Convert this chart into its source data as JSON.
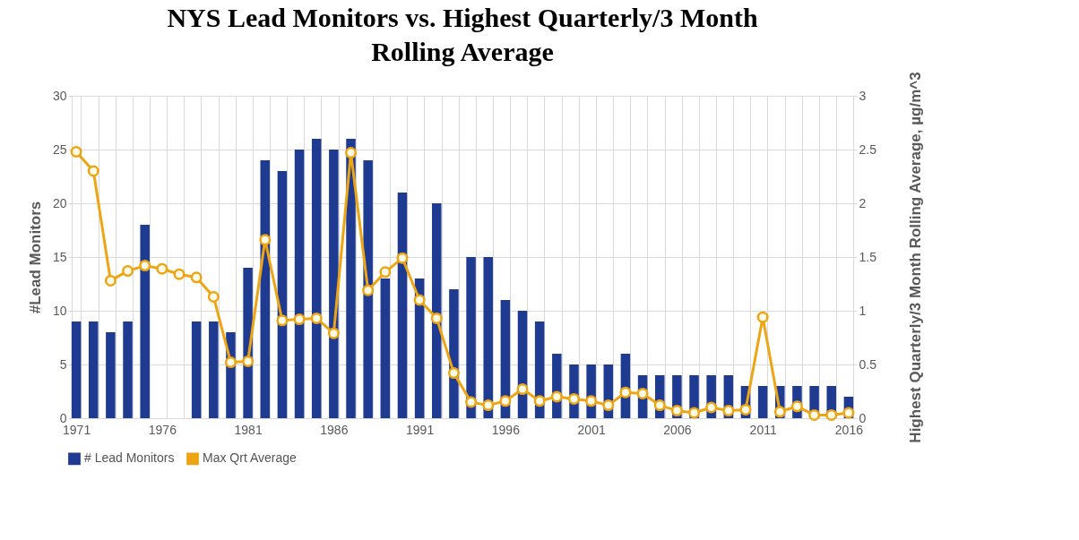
{
  "chart_data": {
    "type": "bar",
    "title": "NYS Lead Monitors vs. Highest Quarterly/3 Month Rolling Average",
    "ylabel": "#Lead Monitors",
    "y2label": "Highest Quarterly/3 Month Rolling Average, µg/m^3",
    "categories": [
      "1971",
      null,
      null,
      null,
      null,
      "1976",
      null,
      null,
      null,
      null,
      "1981",
      null,
      null,
      null,
      null,
      "1986",
      null,
      null,
      null,
      null,
      "1991",
      null,
      null,
      null,
      null,
      "1996",
      null,
      null,
      null,
      null,
      "2001",
      null,
      null,
      null,
      null,
      "2006",
      null,
      null,
      null,
      null,
      "2011",
      null,
      null,
      null,
      null,
      "2016"
    ],
    "series": [
      {
        "name": "# Lead Monitors",
        "color": "#1f3b91",
        "values": [
          9,
          9,
          8,
          9,
          18,
          null,
          null,
          9,
          9,
          8,
          14,
          24,
          23,
          25,
          26,
          25,
          26,
          24,
          13,
          21,
          13,
          20,
          12,
          15,
          15,
          11,
          10,
          9,
          6,
          5,
          5,
          5,
          6,
          4,
          4,
          4,
          4,
          4,
          4,
          3,
          3,
          3,
          3,
          3,
          3,
          2
        ]
      },
      {
        "name": "Max Qrt Average",
        "type": "line",
        "axis": "y2",
        "color": "#eda514",
        "marker": "circle",
        "values": [
          2.48,
          2.3,
          1.28,
          1.37,
          1.42,
          1.39,
          1.34,
          1.31,
          1.13,
          0.52,
          0.53,
          1.66,
          0.91,
          0.92,
          0.93,
          0.79,
          2.47,
          1.19,
          1.36,
          1.49,
          1.1,
          0.93,
          0.42,
          0.15,
          0.12,
          0.16,
          0.27,
          0.16,
          0.2,
          0.18,
          0.16,
          0.12,
          0.24,
          0.23,
          0.12,
          0.07,
          0.05,
          0.1,
          0.07,
          0.08,
          0.94,
          0.06,
          0.11,
          0.03,
          0.03,
          0.05
        ]
      }
    ],
    "ylim": [
      0,
      30
    ],
    "yticks": [
      0,
      5,
      10,
      15,
      20,
      25,
      30
    ],
    "y2lim": [
      0,
      3
    ],
    "y2ticks": [
      0,
      0.5,
      1,
      1.5,
      2,
      2.5,
      3
    ],
    "grid": true,
    "legend": "bottom"
  }
}
